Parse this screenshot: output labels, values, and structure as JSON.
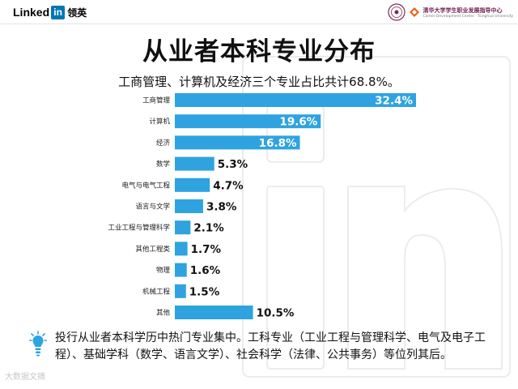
{
  "header": {
    "brand_word": "Linked",
    "brand_in": "in",
    "brand_cn": "领英",
    "partner_cn": "清华大学学生职业发展指导中心",
    "partner_en": "Career Development Center · Tsinghua University"
  },
  "title": "从业者本科专业分布",
  "subtitle": "工商管理、计算机及经济三个专业占比共计68.8%。",
  "chart_data": {
    "type": "bar",
    "orientation": "horizontal",
    "categories": [
      "工商管理",
      "计算机",
      "经济",
      "数学",
      "电气与电气工程",
      "语言与文学",
      "工业工程与管理科学",
      "其他工程类",
      "物理",
      "机械工程",
      "其他"
    ],
    "values": [
      32.4,
      19.6,
      16.8,
      5.3,
      4.7,
      3.8,
      2.1,
      1.7,
      1.6,
      1.5,
      10.5
    ],
    "labels": [
      "32.4%",
      "19.6%",
      "16.8%",
      "5.3%",
      "4.7%",
      "3.8%",
      "2.1%",
      "1.7%",
      "1.6%",
      "1.5%",
      "10.5%"
    ],
    "unit": "%",
    "xlim": [
      0,
      32.4
    ],
    "bar_color": "#2ea3df",
    "grid": false,
    "legend": "none"
  },
  "footer": {
    "icon": "lightbulb-icon",
    "text": "投行从业者本科学历中热门专业集中。工科专业（工业工程与管理科学、电气及电子工程）、基础学科（数学、语言文学）、社会科学（法律、公共事务）等位列其后。"
  },
  "watermark": "大数据文摘"
}
